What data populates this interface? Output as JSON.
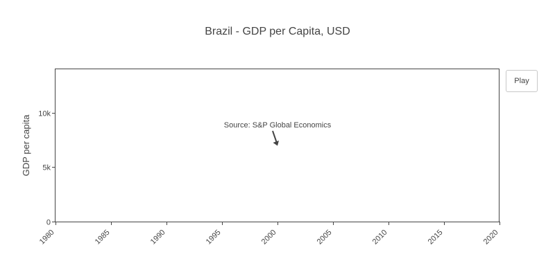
{
  "play_button": {
    "label": "Play"
  },
  "colors": {
    "text": "#444444",
    "frame": "#444444",
    "annotation_arrow": "#444444"
  },
  "chart_data": {
    "type": "line",
    "title": "Brazil - GDP per Capita, USD",
    "xlabel": "",
    "ylabel": "GDP per capita",
    "xlim": [
      1980,
      2020
    ],
    "ylim": [
      0,
      14000
    ],
    "x_ticks": [
      1980,
      1985,
      1990,
      1995,
      2000,
      2005,
      2010,
      2015,
      2020
    ],
    "x_tick_labels": [
      "1980",
      "1985",
      "1990",
      "1995",
      "2000",
      "2005",
      "2010",
      "2015",
      "2020"
    ],
    "y_ticks": [
      0,
      5000,
      10000
    ],
    "y_tick_labels": [
      "0",
      "5k",
      "10k"
    ],
    "grid": false,
    "legend": "none",
    "series": [],
    "annotations": [
      {
        "text": "Source: S&P Global Economics",
        "x": 2000,
        "y": 7000,
        "arrow": true
      }
    ]
  }
}
